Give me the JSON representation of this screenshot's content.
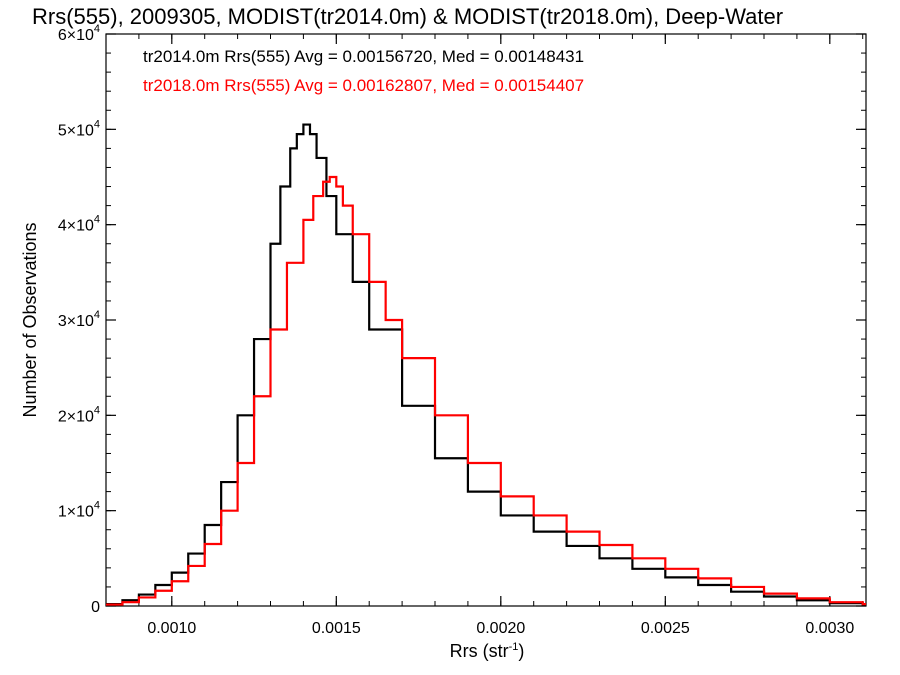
{
  "chart_data": {
    "type": "line",
    "title": "Rrs(555), 2009305, MODIST(tr2014.0m) & MODIST(tr2018.0m), Deep-Water",
    "xlabel": "Rrs (str",
    "xlabel_sup": "-1",
    "xlabel_end": ")",
    "ylabel": "Number of Observations",
    "xlim": [
      0.0008,
      0.00311
    ],
    "ylim": [
      0,
      60000
    ],
    "x_ticks": [
      {
        "value": 0.001,
        "label": "0.0010"
      },
      {
        "value": 0.0015,
        "label": "0.0015"
      },
      {
        "value": 0.002,
        "label": "0.0020"
      },
      {
        "value": 0.0025,
        "label": "0.0025"
      },
      {
        "value": 0.003,
        "label": "0.0030"
      }
    ],
    "y_ticks": [
      {
        "value": 0,
        "label": "0",
        "exp": ""
      },
      {
        "value": 10000,
        "label": "1×10",
        "exp": "4"
      },
      {
        "value": 20000,
        "label": "2×10",
        "exp": "4"
      },
      {
        "value": 30000,
        "label": "3×10",
        "exp": "4"
      },
      {
        "value": 40000,
        "label": "4×10",
        "exp": "4"
      },
      {
        "value": 50000,
        "label": "5×10",
        "exp": "4"
      },
      {
        "value": 60000,
        "label": "6×10",
        "exp": "4"
      }
    ],
    "legend_placement": "top-left",
    "annotations": [
      {
        "text": "tr2014.0m Rrs(555) Avg = 0.00156720, Med = 0.00148431",
        "color": "#000000"
      },
      {
        "text": "tr2018.0m Rrs(555) Avg = 0.00162807, Med = 0.00154407",
        "color": "#ff0000"
      }
    ],
    "series": [
      {
        "color": "#000000",
        "style": "step",
        "x": [
          0.0008,
          0.00085,
          0.0009,
          0.00095,
          0.001,
          0.00105,
          0.0011,
          0.00115,
          0.0012,
          0.00125,
          0.0013,
          0.00133,
          0.00136,
          0.00138,
          0.0014,
          0.00142,
          0.00144,
          0.00147,
          0.0015,
          0.00155,
          0.0016,
          0.0017,
          0.0018,
          0.0019,
          0.002,
          0.0021,
          0.0022,
          0.0023,
          0.0024,
          0.0025,
          0.0026,
          0.0027,
          0.0028,
          0.0029,
          0.003,
          0.0031
        ],
        "y": [
          200,
          600,
          1200,
          2200,
          3500,
          5500,
          8500,
          13000,
          20000,
          28000,
          38000,
          44000,
          48000,
          49500,
          50500,
          49500,
          47000,
          43000,
          39000,
          34000,
          29000,
          21000,
          15500,
          12000,
          9500,
          7800,
          6300,
          5000,
          3900,
          3000,
          2200,
          1500,
          1000,
          600,
          300,
          150
        ]
      },
      {
        "color": "#ff0000",
        "style": "step",
        "x": [
          0.0008,
          0.00085,
          0.0009,
          0.00095,
          0.001,
          0.00105,
          0.0011,
          0.00115,
          0.0012,
          0.00125,
          0.0013,
          0.00135,
          0.0014,
          0.00143,
          0.00146,
          0.00148,
          0.0015,
          0.00152,
          0.00155,
          0.0016,
          0.00165,
          0.0017,
          0.0018,
          0.0019,
          0.002,
          0.0021,
          0.0022,
          0.0023,
          0.0024,
          0.0025,
          0.0026,
          0.0027,
          0.0028,
          0.0029,
          0.003,
          0.0031
        ],
        "y": [
          150,
          400,
          900,
          1600,
          2600,
          4200,
          6500,
          10000,
          15000,
          22000,
          29000,
          36000,
          40500,
          43000,
          44500,
          45000,
          44000,
          42000,
          39000,
          34000,
          30000,
          26000,
          20000,
          15000,
          11500,
          9500,
          7800,
          6400,
          5000,
          3900,
          2900,
          2000,
          1300,
          800,
          400,
          200
        ]
      }
    ]
  }
}
